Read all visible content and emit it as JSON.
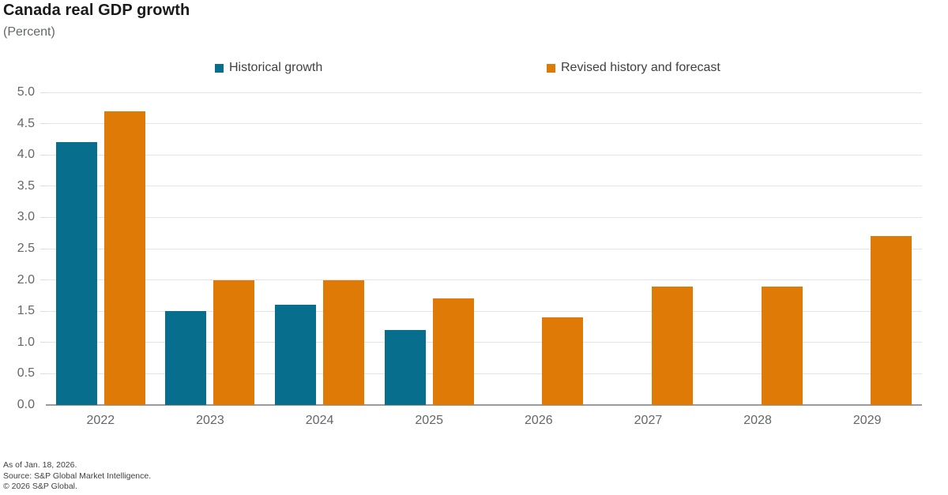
{
  "header": {
    "title": "Canada real GDP growth",
    "subtitle": "(Percent)"
  },
  "legend": [
    {
      "label": "Historical growth",
      "series": "historical"
    },
    {
      "label": "Revised history and forecast",
      "series": "revised"
    }
  ],
  "colors": {
    "historical": "#086e8e",
    "revised": "#de7a05",
    "grid": "#e3e3e3",
    "axis": "#9b9b9b",
    "tick_text": "#63666a",
    "title_text": "#1a1a1a",
    "legend_text": "#414042"
  },
  "footnotes": [
    "As of Jan. 18, 2026.",
    "Source: S&P Global Market Intelligence.",
    "© 2026 S&P Global."
  ],
  "chart_data": {
    "type": "bar",
    "title": "Canada real GDP growth",
    "subtitle": "(Percent)",
    "categories": [
      "2022",
      "2023",
      "2024",
      "2025",
      "2026",
      "2027",
      "2028",
      "2029"
    ],
    "series": [
      {
        "name": "Historical growth",
        "key": "historical",
        "values": [
          4.2,
          1.5,
          1.6,
          1.2,
          null,
          null,
          null,
          null
        ]
      },
      {
        "name": "Revised history and forecast",
        "key": "revised",
        "values": [
          4.7,
          2.0,
          2.0,
          1.7,
          1.4,
          1.9,
          1.9,
          2.7
        ]
      }
    ],
    "xlabel": "",
    "ylabel": "Percent",
    "ylim": [
      0,
      5
    ],
    "ytick_step": 0.5,
    "yticks": [
      "0.0",
      "0.5",
      "1.0",
      "1.5",
      "2.0",
      "2.5",
      "3.0",
      "3.5",
      "4.0",
      "4.5",
      "5.0"
    ],
    "grid": true,
    "legend_position": "top"
  }
}
